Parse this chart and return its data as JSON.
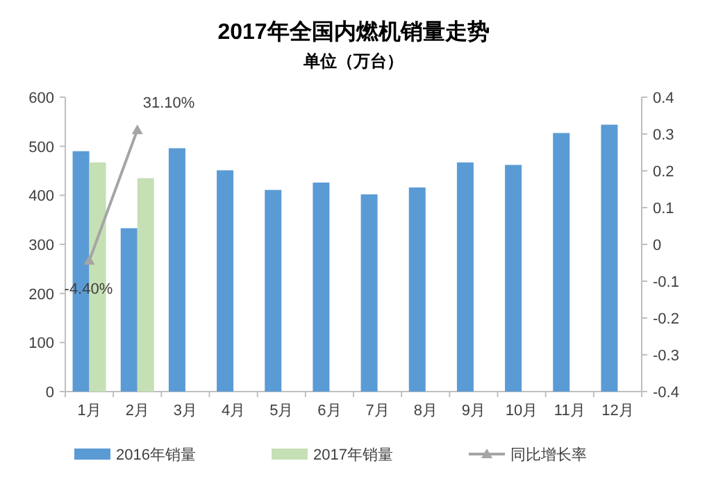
{
  "chart_data": {
    "type": "bar",
    "title": "2017年全国内燃机销量走势",
    "subtitle": "单位（万台）",
    "categories": [
      "1月",
      "2月",
      "3月",
      "4月",
      "5月",
      "6月",
      "7月",
      "8月",
      "9月",
      "10月",
      "11月",
      "12月"
    ],
    "series": [
      {
        "name": "2016年销量",
        "color": "#5b9bd5",
        "values": [
          490,
          333,
          496,
          451,
          411,
          426,
          402,
          416,
          467,
          462,
          527,
          544
        ]
      },
      {
        "name": "2017年销量",
        "color": "#c5e0b4",
        "values": [
          467,
          435,
          null,
          null,
          null,
          null,
          null,
          null,
          null,
          null,
          null,
          null
        ]
      },
      {
        "name": "同比增长率",
        "type": "line",
        "axis": "y2",
        "color": "#a5a5a5",
        "marker": "triangle",
        "values": [
          -0.044,
          0.311,
          null,
          null,
          null,
          null,
          null,
          null,
          null,
          null,
          null,
          null
        ],
        "value_labels": [
          "-4.40%",
          "31.10%",
          null,
          null,
          null,
          null,
          null,
          null,
          null,
          null,
          null,
          null
        ]
      }
    ],
    "ylim": [
      0,
      600
    ],
    "yticks": [
      0,
      100,
      200,
      300,
      400,
      500,
      600
    ],
    "y2lim": [
      -0.4,
      0.4
    ],
    "y2ticks": [
      -0.4,
      -0.3,
      -0.2,
      -0.1,
      0,
      0.1,
      0.2,
      0.3,
      0.4
    ],
    "legend": "bottom"
  }
}
